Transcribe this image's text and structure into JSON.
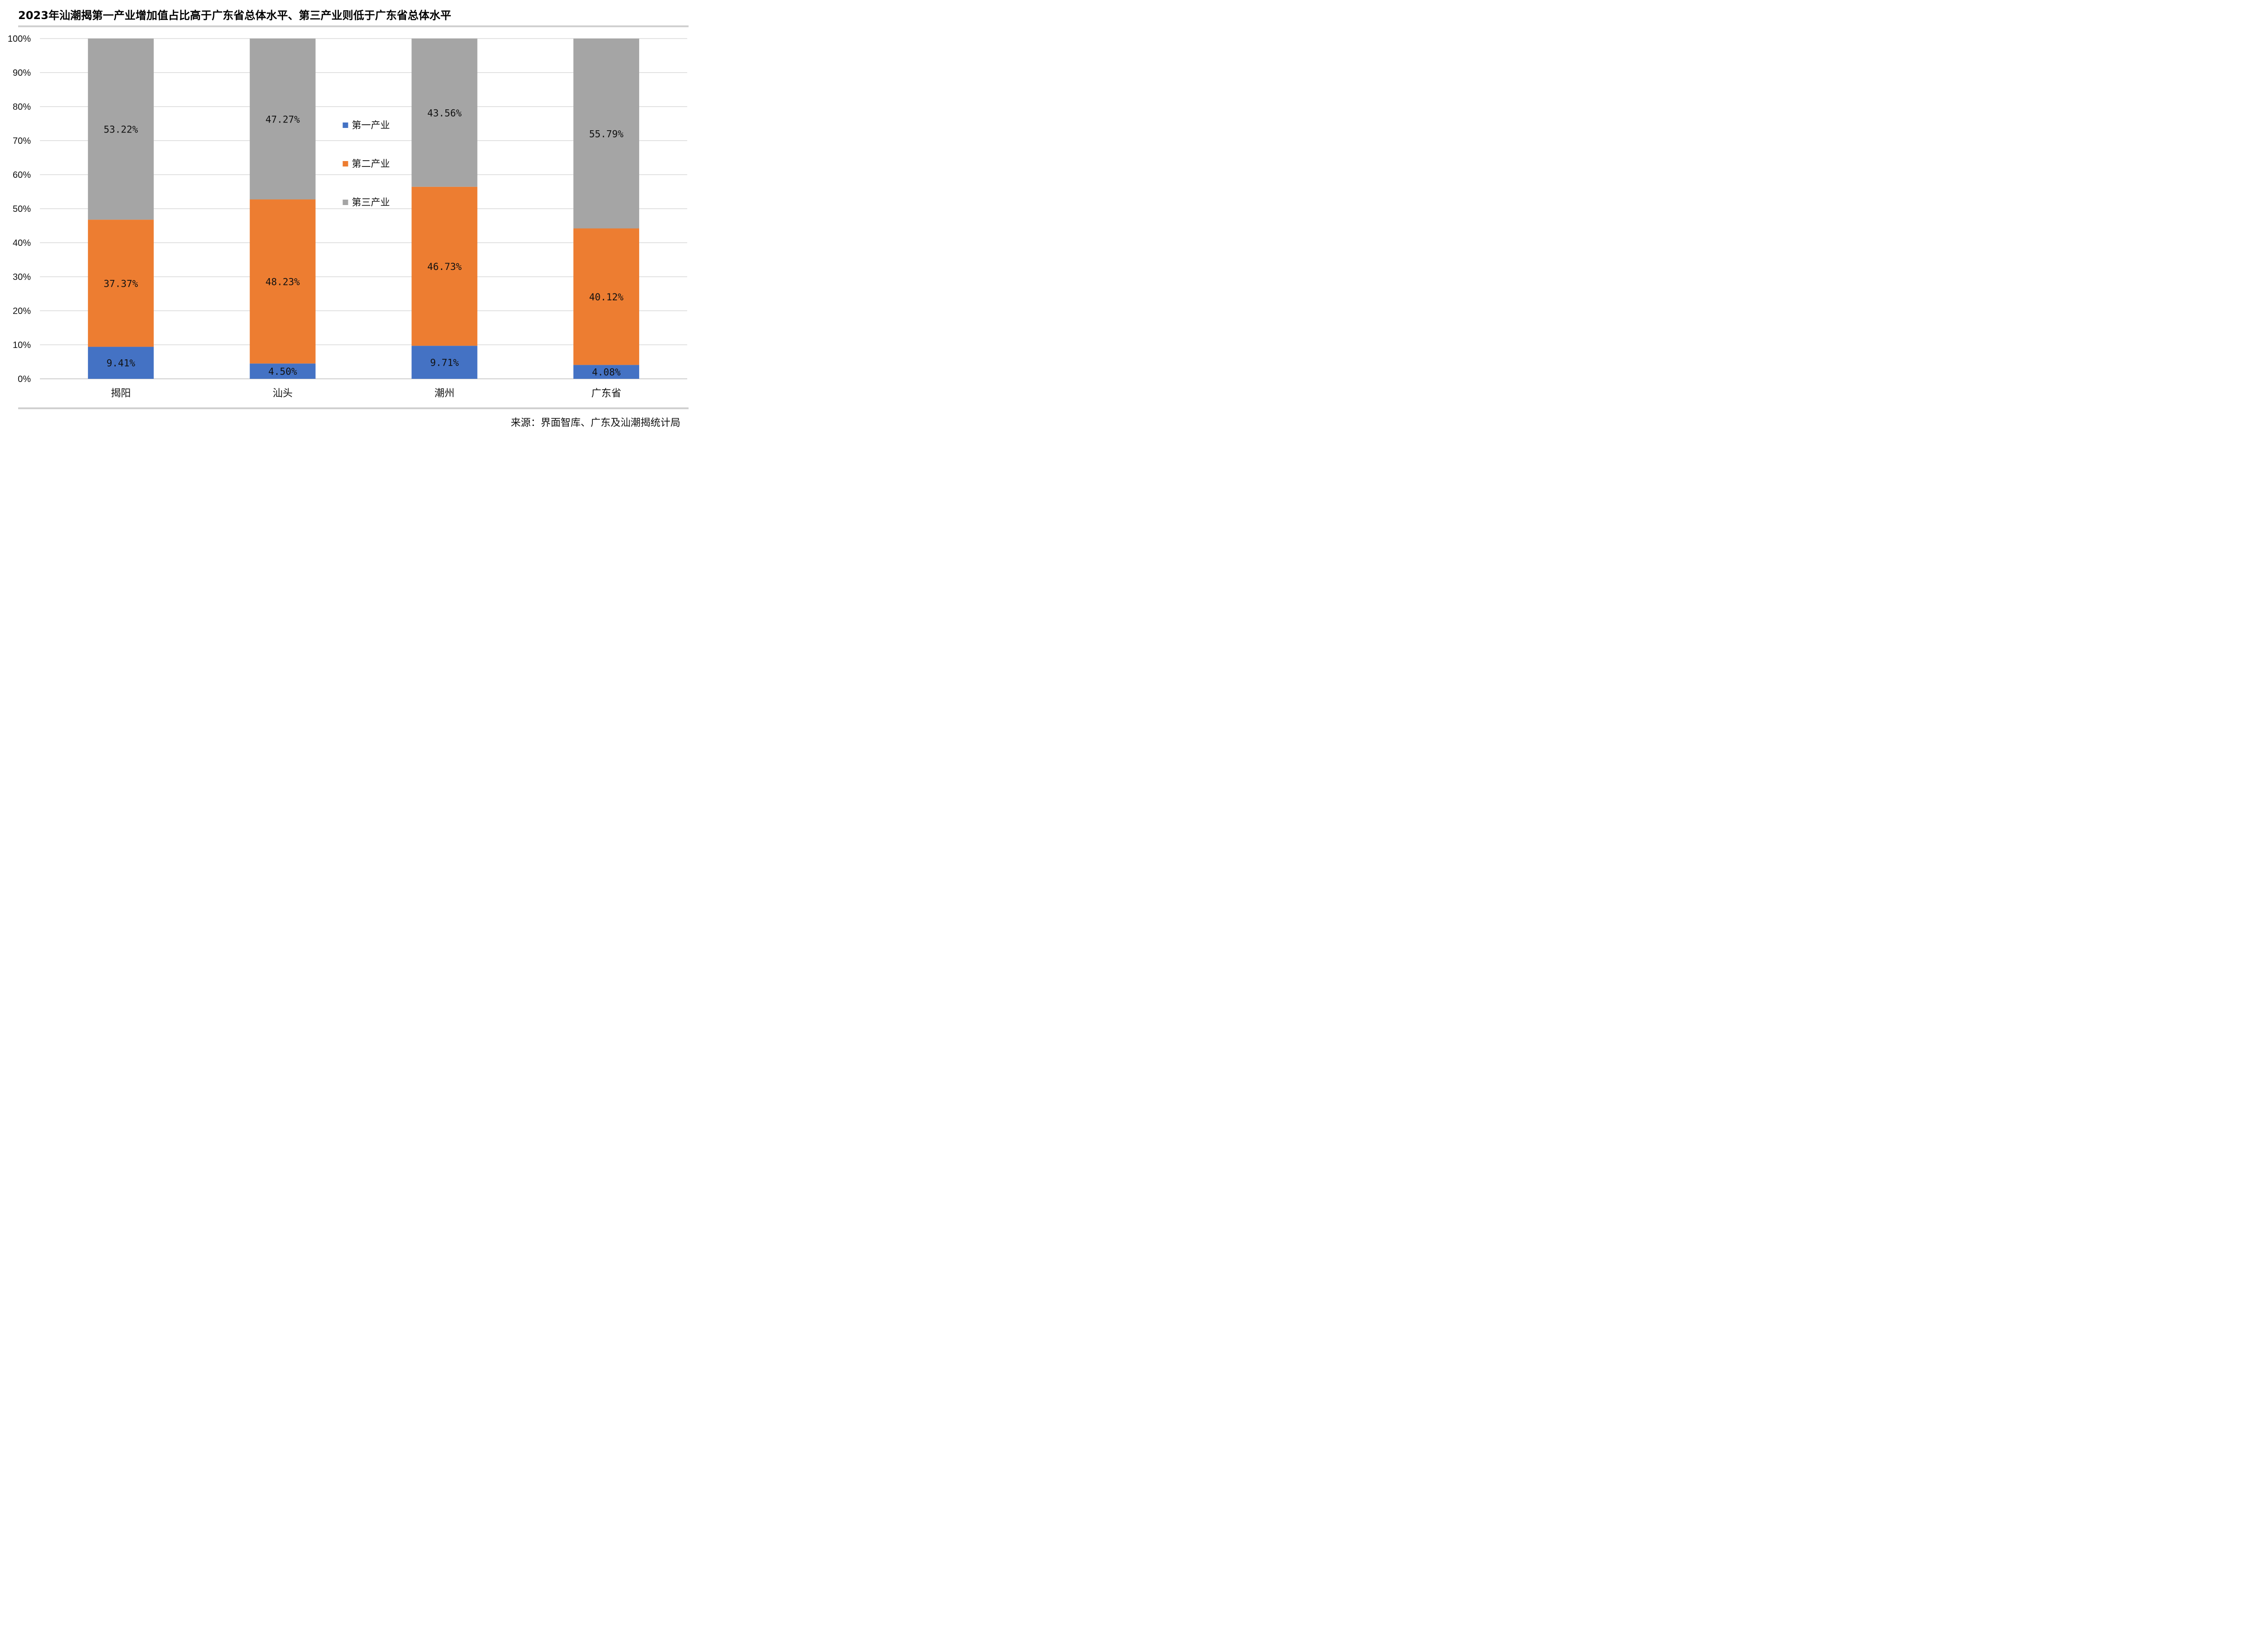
{
  "title": "2023年汕潮揭第一产业增加值占比高于广东省总体水平、第三产业则低于广东省总体水平",
  "source": "来源：界面智库、广东及汕潮揭统计局",
  "chart_data": {
    "type": "bar",
    "stacked": true,
    "categories": [
      "揭阳",
      "汕头",
      "潮州",
      "广东省"
    ],
    "series": [
      {
        "name": "第一产业",
        "color": "#4472C4",
        "values": [
          9.41,
          4.5,
          9.71,
          4.08
        ],
        "labels": [
          "9.41%",
          "4.50%",
          "9.71%",
          "4.08%"
        ]
      },
      {
        "name": "第二产业",
        "color": "#ED7D31",
        "values": [
          37.37,
          48.23,
          46.73,
          40.12
        ],
        "labels": [
          "37.37%",
          "48.23%",
          "46.73%",
          "40.12%"
        ]
      },
      {
        "name": "第三产业",
        "color": "#A5A5A5",
        "values": [
          53.22,
          47.27,
          43.56,
          55.79
        ],
        "labels": [
          "53.22%",
          "47.27%",
          "43.56%",
          "55.79%"
        ]
      }
    ],
    "yticks": [
      "0%",
      "10%",
      "20%",
      "30%",
      "40%",
      "50%",
      "60%",
      "70%",
      "80%",
      "90%",
      "100%"
    ],
    "ylim": [
      0,
      100
    ],
    "grid": true,
    "legend_position": "center-left, between 汕头 and 潮州"
  }
}
